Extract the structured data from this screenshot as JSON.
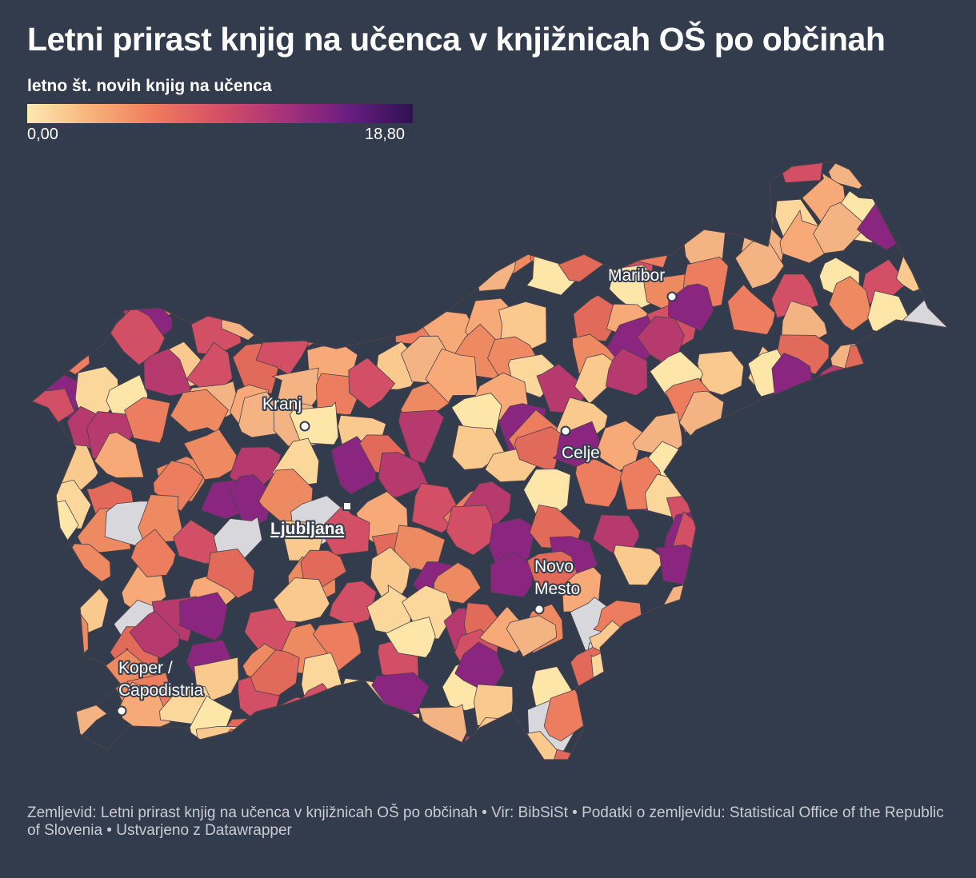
{
  "title": "Letni prirast knjig na učenca v knjižnicah OŠ po občinah",
  "legend": {
    "title": "letno št. novih knjig na učenca",
    "min_label": "0,00",
    "max_label": "18,80",
    "min_value": 0.0,
    "max_value": 18.8,
    "colors": [
      "#fde9b0",
      "#f8b27a",
      "#ef7a5d",
      "#d54f66",
      "#a7327a",
      "#6a1d80",
      "#2f1152"
    ],
    "no_data_color": "#d8d8dc"
  },
  "cities": [
    {
      "name": "Kranj",
      "lines": [
        "Kranj"
      ],
      "marker": "circle",
      "capital": false
    },
    {
      "name": "Ljubljana",
      "lines": [
        "Ljubljana"
      ],
      "marker": "square",
      "capital": true
    },
    {
      "name": "Celje",
      "lines": [
        "Celje"
      ],
      "marker": "circle",
      "capital": false
    },
    {
      "name": "Maribor",
      "lines": [
        "Maribor"
      ],
      "marker": "circle",
      "capital": false
    },
    {
      "name": "Novo Mesto",
      "lines": [
        "Novo",
        "Mesto"
      ],
      "marker": "circle",
      "capital": false
    },
    {
      "name": "Koper / Capodistria",
      "lines": [
        "Koper /",
        "Capodistria"
      ],
      "marker": "circle",
      "capital": false
    }
  ],
  "footer": "Zemljevid: Letni prirast knjig na učenca v knjižnicah OŠ po občinah • Vir: BibSiSt • Podatki o zemljevidu: Statistical Office of the Republic of Slovenia • Ustvarjeno z Datawrapper"
}
